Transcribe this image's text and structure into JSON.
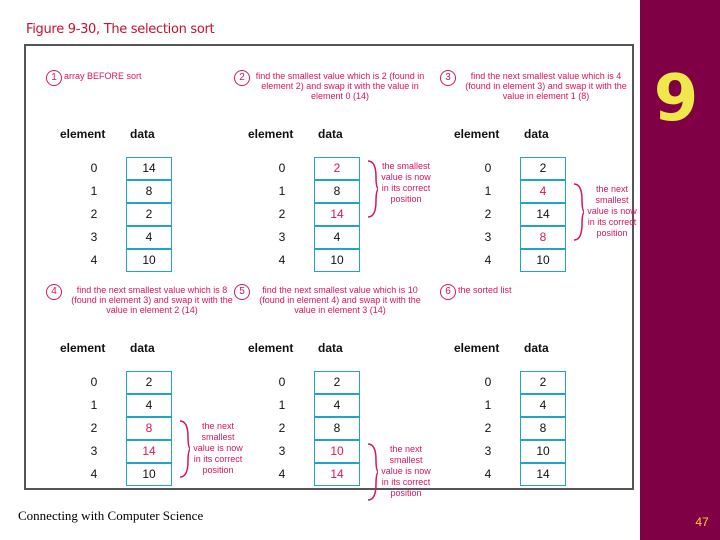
{
  "slide": {
    "title": "Figure 9-30, The selection sort",
    "chapter": "9",
    "footer": "Connecting with Computer Science",
    "page_number": "47",
    "colors": {
      "sidebar": "#800046",
      "accent": "#d9155f",
      "cell_border": "#22a3c8",
      "badge": "#f0e84a"
    }
  },
  "headers": {
    "element": "element",
    "data": "data"
  },
  "panels": [
    {
      "step": "1",
      "caption": "array BEFORE sort",
      "rows": [
        {
          "i": "0",
          "v": "14"
        },
        {
          "i": "1",
          "v": "8"
        },
        {
          "i": "2",
          "v": "2"
        },
        {
          "i": "3",
          "v": "4"
        },
        {
          "i": "4",
          "v": "10"
        }
      ],
      "highlight": [],
      "note": ""
    },
    {
      "step": "2",
      "caption": "find the smallest value which is 2 (found in element 2) and swap it with the value in element 0 (14)",
      "rows": [
        {
          "i": "0",
          "v": "2"
        },
        {
          "i": "1",
          "v": "8"
        },
        {
          "i": "2",
          "v": "14"
        },
        {
          "i": "3",
          "v": "4"
        },
        {
          "i": "4",
          "v": "10"
        }
      ],
      "highlight": [
        0,
        2
      ],
      "note": "the smallest value is now in its correct position"
    },
    {
      "step": "3",
      "caption": "find the next smallest value which is 4 (found in element 3) and swap it with the value in element 1 (8)",
      "rows": [
        {
          "i": "0",
          "v": "2"
        },
        {
          "i": "1",
          "v": "4"
        },
        {
          "i": "2",
          "v": "14"
        },
        {
          "i": "3",
          "v": "8"
        },
        {
          "i": "4",
          "v": "10"
        }
      ],
      "highlight": [
        1,
        3
      ],
      "note": "the next smallest value is now in its correct position"
    },
    {
      "step": "4",
      "caption": "find the next smallest value which is 8 (found in element 3) and swap it with the value in element 2 (14)",
      "rows": [
        {
          "i": "0",
          "v": "2"
        },
        {
          "i": "1",
          "v": "4"
        },
        {
          "i": "2",
          "v": "8"
        },
        {
          "i": "3",
          "v": "14"
        },
        {
          "i": "4",
          "v": "10"
        }
      ],
      "highlight": [
        2,
        3
      ],
      "note": "the next smallest value is now in its correct position"
    },
    {
      "step": "5",
      "caption": "find the next smallest value which is 10 (found in element 4) and swap it with the value in element 3 (14)",
      "rows": [
        {
          "i": "0",
          "v": "2"
        },
        {
          "i": "1",
          "v": "4"
        },
        {
          "i": "2",
          "v": "8"
        },
        {
          "i": "3",
          "v": "10"
        },
        {
          "i": "4",
          "v": "14"
        }
      ],
      "highlight": [
        3,
        4
      ],
      "note": "the next smallest value is now in its correct position"
    },
    {
      "step": "6",
      "caption": "the sorted list",
      "rows": [
        {
          "i": "0",
          "v": "2"
        },
        {
          "i": "1",
          "v": "4"
        },
        {
          "i": "2",
          "v": "8"
        },
        {
          "i": "3",
          "v": "10"
        },
        {
          "i": "4",
          "v": "14"
        }
      ],
      "highlight": [],
      "note": ""
    }
  ]
}
